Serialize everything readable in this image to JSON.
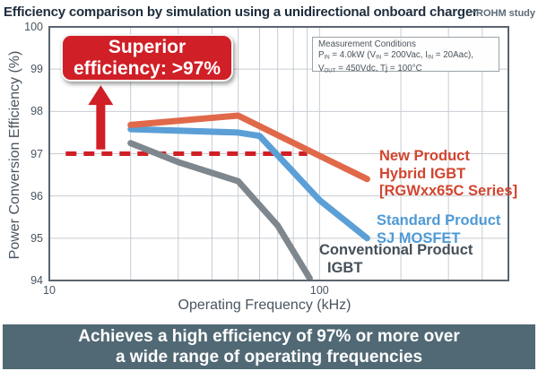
{
  "page": {
    "title": "Efficiency comparison by simulation using a unidirectional onboard charger",
    "note": "*ROHM study"
  },
  "callout": {
    "line1": "Superior",
    "line2": "efficiency: >97%",
    "color": "#d01f26",
    "arrow": {
      "x_khz": 15.5,
      "from_pct": 97.1,
      "to_pct": 98.62
    }
  },
  "measurement_box": {
    "title": "Measurement Conditions",
    "lines": [
      [
        {
          "t": "P"
        },
        {
          "t": "IN",
          "sub": true
        },
        {
          "t": " = 4.0kW (V"
        },
        {
          "t": "IN",
          "sub": true
        },
        {
          "t": " = 200Vac, I"
        },
        {
          "t": "IN",
          "sub": true
        },
        {
          "t": " = 20Aac),"
        }
      ],
      [
        {
          "t": "V"
        },
        {
          "t": "OUT",
          "sub": true
        },
        {
          "t": " = 450Vdc, Tj = 100°C"
        }
      ]
    ]
  },
  "chart_data": {
    "type": "line",
    "title": "Efficiency comparison by simulation using a unidirectional onboard charger",
    "x_axis": {
      "label": "Operating Frequency (kHz)",
      "scale": "log",
      "min": 10,
      "max": 500,
      "tick_values": [
        10,
        100
      ],
      "tick_labels": [
        "10",
        "100"
      ],
      "gridlines": [
        20,
        30,
        40,
        50,
        60,
        70,
        80,
        90,
        100,
        200,
        300,
        400
      ]
    },
    "y_axis": {
      "label": "Power Conversion Efficiency (%)",
      "min": 94,
      "max": 100,
      "tick_values": [
        94,
        95,
        96,
        97,
        98,
        99,
        100
      ],
      "tick_labels": [
        "94",
        "95",
        "96",
        "97",
        "98",
        "99",
        "100"
      ],
      "gridlines": [
        95,
        96,
        97,
        98,
        99
      ]
    },
    "reference_line": {
      "value": 97,
      "from_khz": 11.5,
      "to_khz": 90,
      "color": "#d01f26",
      "style": "dashed"
    },
    "grid": true,
    "legend_position": "right-inside",
    "series": [
      {
        "id": "igbt",
        "name": "Conventional Product IGBT",
        "label_lines": [
          "Conventional Product",
          "IGBT"
        ],
        "color": "#7e878e",
        "label_color": "#454f58",
        "points": [
          [
            20,
            97.25
          ],
          [
            30,
            96.8
          ],
          [
            50,
            96.35
          ],
          [
            70,
            95.3
          ],
          [
            92,
            94.05
          ]
        ]
      },
      {
        "id": "sj-mosfet",
        "name": "Standard Product SJ MOSFET",
        "label_lines": [
          "Standard Product",
          "SJ MOSFET"
        ],
        "color": "#5b9fd6",
        "label_color": "#4f9ad6",
        "points": [
          [
            20,
            97.58
          ],
          [
            50,
            97.5
          ],
          [
            60,
            97.42
          ],
          [
            100,
            95.9
          ],
          [
            150,
            95.0
          ]
        ]
      },
      {
        "id": "hybrid-igbt",
        "name": "New Product Hybrid IGBT [RGWxx65C Series]",
        "label_lines": [
          "New Product",
          "Hybrid IGBT",
          "[RGWxx65C Series]"
        ],
        "color": "#e0694a",
        "label_color": "#d2452f",
        "points": [
          [
            20,
            97.68
          ],
          [
            50,
            97.9
          ],
          [
            100,
            96.95
          ],
          [
            150,
            96.4
          ]
        ]
      }
    ]
  },
  "banner": {
    "line1": "Achieves a high efficiency of 97% or more over",
    "line2": "a wide range of operating frequencies",
    "bg": "#516974"
  }
}
